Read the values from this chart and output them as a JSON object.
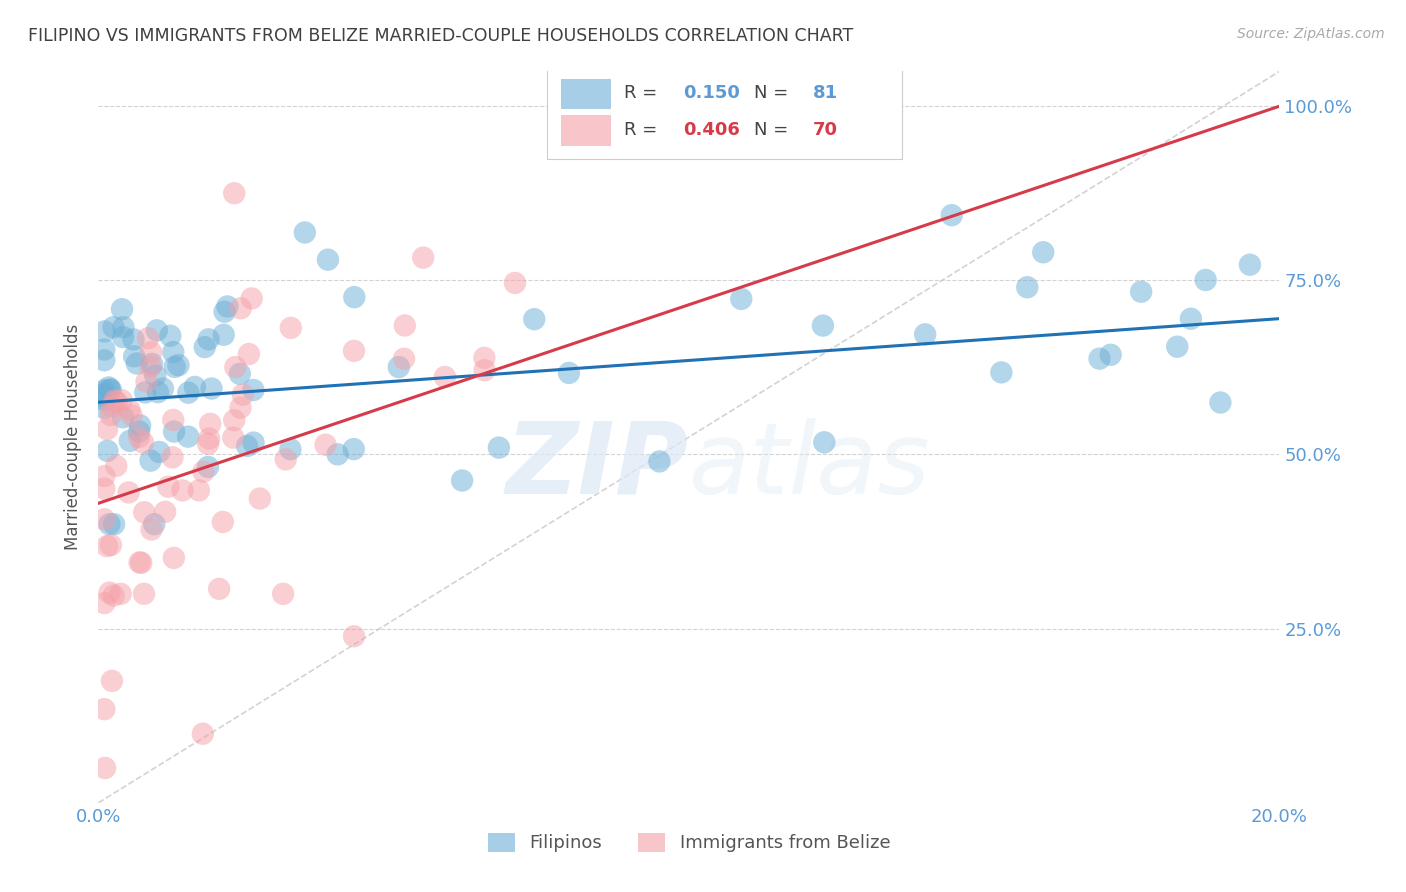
{
  "title": "FILIPINO VS IMMIGRANTS FROM BELIZE MARRIED-COUPLE HOUSEHOLDS CORRELATION CHART",
  "source": "Source: ZipAtlas.com",
  "ylabel": "Married-couple Households",
  "x_min": 0.0,
  "x_max": 0.2,
  "y_min": 0.0,
  "y_max": 1.05,
  "blue_color": "#6baed6",
  "pink_color": "#f4a0a8",
  "blue_line_color": "#2171b5",
  "pink_line_color": "#d63b4a",
  "diagonal_color": "#c8c8c8",
  "title_color": "#404040",
  "axis_label_color": "#5b9bd5",
  "grid_color": "#d3d3d3",
  "legend_r1": "0.150",
  "legend_n1": "81",
  "legend_r2": "0.406",
  "legend_n2": "70",
  "blue_line_x0": 0.0,
  "blue_line_x1": 0.2,
  "blue_line_y0": 0.575,
  "blue_line_y1": 0.695,
  "pink_line_x0": 0.0,
  "pink_line_x1": 0.2,
  "pink_line_y0": 0.43,
  "pink_line_y1": 1.0
}
